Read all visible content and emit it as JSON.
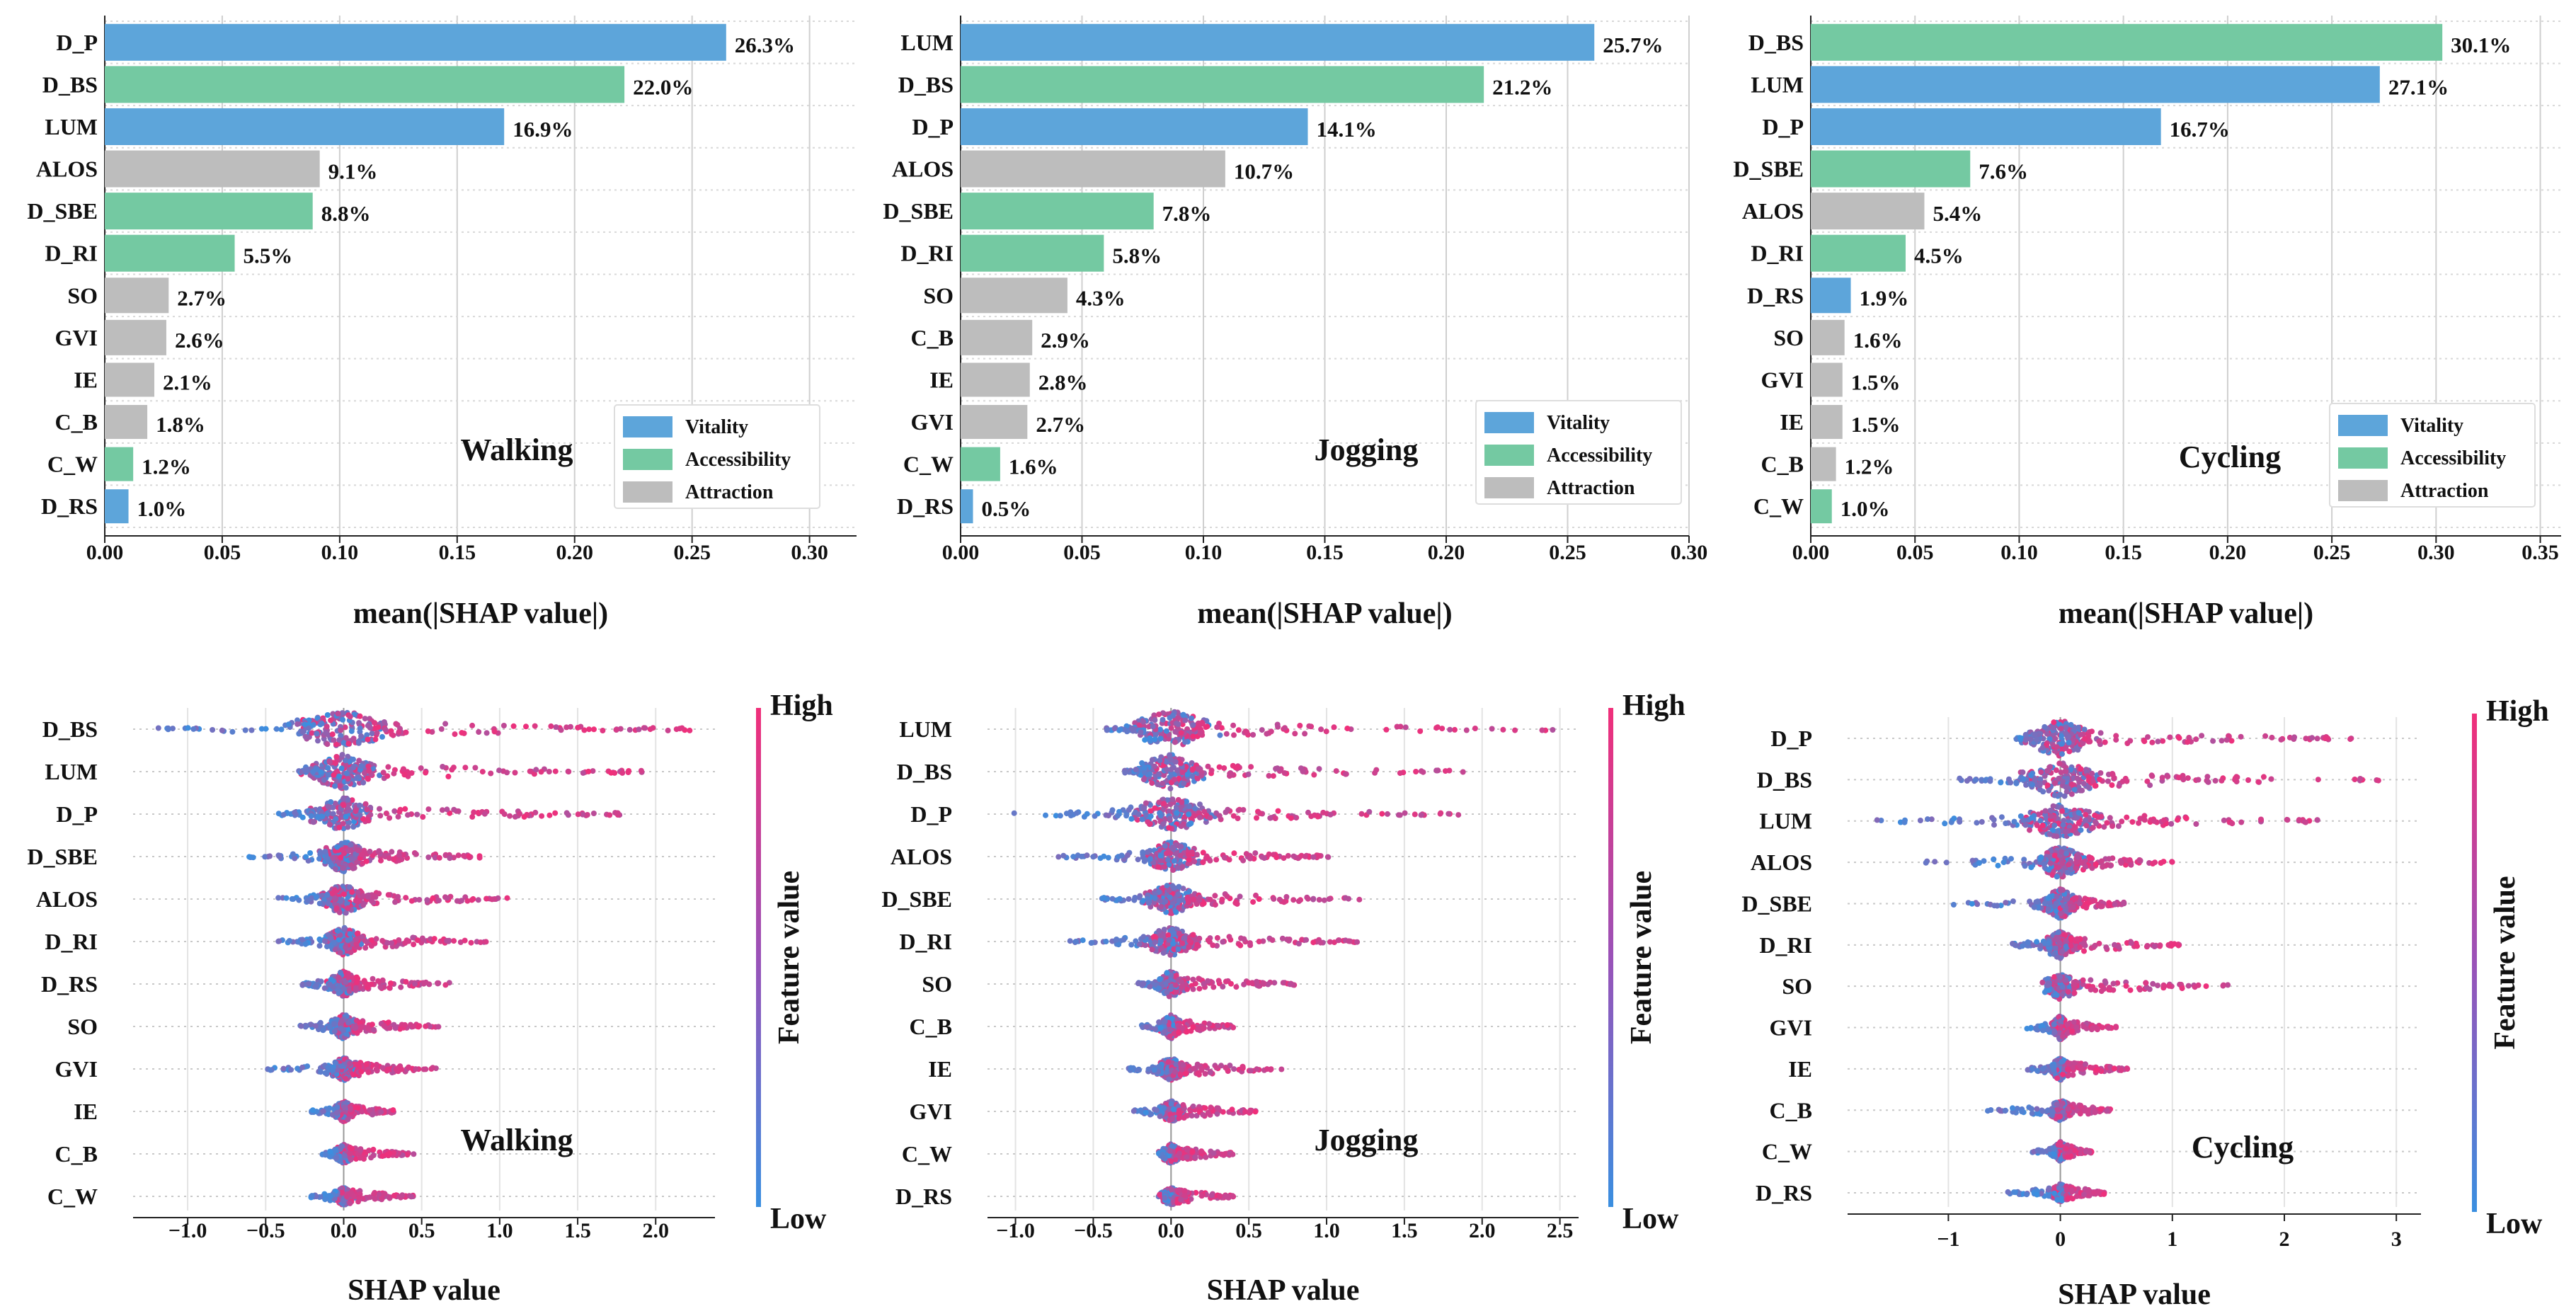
{
  "colors": {
    "Vitality": "#5DA5DA",
    "Accessibility": "#74C9A2",
    "Attraction": "#BDBDBD",
    "high": "#F02F7A",
    "low": "#3A8FE0"
  },
  "chart_data": [
    {
      "type": "bar",
      "id": "bar-walking",
      "title": "Walking",
      "xlabel": "mean(|SHAP value|)",
      "xlim": [
        0,
        0.32
      ],
      "xticks": [
        "0.00",
        "0.05",
        "0.10",
        "0.15",
        "0.20",
        "0.25",
        "0.30"
      ],
      "xtick_values": [
        0,
        0.05,
        0.1,
        0.15,
        0.2,
        0.25,
        0.3
      ],
      "legend": [
        "Vitality",
        "Accessibility",
        "Attraction"
      ],
      "categories": [
        "D_P",
        "D_BS",
        "LUM",
        "ALOS",
        "D_SBE",
        "D_RI",
        "SO",
        "GVI",
        "IE",
        "C_B",
        "C_W",
        "D_RS"
      ],
      "values": [
        0.2645,
        0.2212,
        0.17,
        0.0915,
        0.0885,
        0.0553,
        0.0272,
        0.0262,
        0.0211,
        0.0181,
        0.0121,
        0.0101
      ],
      "labels": [
        "26.3%",
        "22.0%",
        "16.9%",
        "9.1%",
        "8.8%",
        "5.5%",
        "2.7%",
        "2.6%",
        "2.1%",
        "1.8%",
        "1.2%",
        "1.0%"
      ],
      "groups": [
        "Vitality",
        "Accessibility",
        "Vitality",
        "Attraction",
        "Accessibility",
        "Accessibility",
        "Attraction",
        "Attraction",
        "Attraction",
        "Attraction",
        "Accessibility",
        "Vitality"
      ]
    },
    {
      "type": "bar",
      "id": "bar-jogging",
      "title": "Jogging",
      "xlabel": "mean(|SHAP value|)",
      "xlim": [
        0,
        0.3
      ],
      "xticks": [
        "0.00",
        "0.05",
        "0.10",
        "0.15",
        "0.20",
        "0.25",
        "0.30"
      ],
      "xtick_values": [
        0,
        0.05,
        0.1,
        0.15,
        0.2,
        0.25,
        0.3
      ],
      "legend": [
        "Vitality",
        "Accessibility",
        "Attraction"
      ],
      "categories": [
        "LUM",
        "D_BS",
        "D_P",
        "ALOS",
        "D_SBE",
        "D_RI",
        "SO",
        "C_B",
        "IE",
        "GVI",
        "C_W",
        "D_RS"
      ],
      "values": [
        0.261,
        0.2155,
        0.143,
        0.109,
        0.0795,
        0.059,
        0.044,
        0.0295,
        0.0285,
        0.0275,
        0.0163,
        0.0051
      ],
      "labels": [
        "25.7%",
        "21.2%",
        "14.1%",
        "10.7%",
        "7.8%",
        "5.8%",
        "4.3%",
        "2.9%",
        "2.8%",
        "2.7%",
        "1.6%",
        "0.5%"
      ],
      "groups": [
        "Vitality",
        "Accessibility",
        "Vitality",
        "Attraction",
        "Accessibility",
        "Accessibility",
        "Attraction",
        "Attraction",
        "Attraction",
        "Attraction",
        "Accessibility",
        "Vitality"
      ]
    },
    {
      "type": "bar",
      "id": "bar-cycling",
      "title": "Cycling",
      "xlabel": "mean(|SHAP value|)",
      "xlim": [
        0,
        0.36
      ],
      "xticks": [
        "0.00",
        "0.05",
        "0.10",
        "0.15",
        "0.20",
        "0.25",
        "0.30",
        "0.35"
      ],
      "xtick_values": [
        0,
        0.05,
        0.1,
        0.15,
        0.2,
        0.25,
        0.3,
        0.35
      ],
      "legend": [
        "Vitality",
        "Accessibility",
        "Attraction"
      ],
      "categories": [
        "D_BS",
        "LUM",
        "D_P",
        "D_SBE",
        "ALOS",
        "D_RI",
        "D_RS",
        "SO",
        "GVI",
        "IE",
        "C_B",
        "C_W"
      ],
      "values": [
        0.303,
        0.273,
        0.168,
        0.0765,
        0.0545,
        0.0455,
        0.0192,
        0.0162,
        0.0152,
        0.0152,
        0.0121,
        0.0101
      ],
      "labels": [
        "30.1%",
        "27.1%",
        "16.7%",
        "7.6%",
        "5.4%",
        "4.5%",
        "1.9%",
        "1.6%",
        "1.5%",
        "1.5%",
        "1.2%",
        "1.0%"
      ],
      "groups": [
        "Accessibility",
        "Vitality",
        "Vitality",
        "Accessibility",
        "Attraction",
        "Accessibility",
        "Vitality",
        "Attraction",
        "Attraction",
        "Attraction",
        "Attraction",
        "Accessibility"
      ]
    },
    {
      "type": "scatter",
      "id": "bee-walking",
      "title": "Walking",
      "xlabel": "SHAP value",
      "xlim": [
        -1.35,
        2.38
      ],
      "xticks": [
        "−1.0",
        "−0.5",
        "0.0",
        "0.5",
        "1.0",
        "1.5",
        "2.0"
      ],
      "xtick_values": [
        -1,
        -0.5,
        0,
        0.5,
        1,
        1.5,
        2
      ],
      "colorbar": {
        "high": "High",
        "low": "Low",
        "label": "Feature value"
      },
      "features": [
        "D_BS",
        "LUM",
        "D_P",
        "D_SBE",
        "ALOS",
        "D_RI",
        "D_RS",
        "SO",
        "GVI",
        "IE",
        "C_B",
        "C_W"
      ],
      "ranges": [
        [
          -1.25,
          2.28
        ],
        [
          -0.3,
          1.92
        ],
        [
          -0.45,
          1.82
        ],
        [
          -0.62,
          0.88
        ],
        [
          -0.43,
          1.07
        ],
        [
          -0.43,
          0.92
        ],
        [
          -0.3,
          0.68
        ],
        [
          -0.32,
          0.62
        ],
        [
          -0.5,
          0.6
        ],
        [
          -0.22,
          0.32
        ],
        [
          -0.14,
          0.45
        ],
        [
          -0.22,
          0.45
        ]
      ]
    },
    {
      "type": "scatter",
      "id": "bee-jogging",
      "title": "Jogging",
      "xlabel": "SHAP value",
      "xlim": [
        -1.18,
        2.62
      ],
      "xticks": [
        "−1.0",
        "−0.5",
        "0.0",
        "0.5",
        "1.0",
        "1.5",
        "2.0",
        "2.5"
      ],
      "xtick_values": [
        -1,
        -0.5,
        0,
        0.5,
        1,
        1.5,
        2,
        2.5
      ],
      "colorbar": {
        "high": "High",
        "low": "Low",
        "label": "Feature value"
      },
      "features": [
        "LUM",
        "D_BS",
        "D_P",
        "ALOS",
        "D_SBE",
        "D_RI",
        "SO",
        "C_B",
        "IE",
        "GVI",
        "C_W",
        "D_RS"
      ],
      "ranges": [
        [
          -0.42,
          2.5
        ],
        [
          -0.3,
          1.95
        ],
        [
          -1.02,
          1.88
        ],
        [
          -0.75,
          1.05
        ],
        [
          -0.48,
          1.22
        ],
        [
          -0.7,
          1.2
        ],
        [
          -0.22,
          0.8
        ],
        [
          -0.2,
          0.4
        ],
        [
          -0.28,
          0.72
        ],
        [
          -0.25,
          0.55
        ],
        [
          -0.08,
          0.4
        ],
        [
          -0.03,
          0.4
        ]
      ]
    },
    {
      "type": "scatter",
      "id": "bee-cycling",
      "title": "Cycling",
      "xlabel": "SHAP value",
      "xlim": [
        -1.9,
        3.22
      ],
      "xticks": [
        "−1",
        "0",
        "1",
        "2",
        "3"
      ],
      "xtick_values": [
        -1,
        0,
        1,
        2,
        3
      ],
      "colorbar": {
        "high": "High",
        "low": "Low",
        "label": "Feature value"
      },
      "features": [
        "D_P",
        "D_BS",
        "LUM",
        "ALOS",
        "D_SBE",
        "D_RI",
        "SO",
        "GVI",
        "IE",
        "C_B",
        "C_W",
        "D_RS"
      ],
      "ranges": [
        [
          -0.4,
          2.6
        ],
        [
          -0.95,
          2.98
        ],
        [
          -1.7,
          2.3
        ],
        [
          -1.32,
          1.0
        ],
        [
          -0.98,
          0.58
        ],
        [
          -0.5,
          1.08
        ],
        [
          -0.12,
          1.52
        ],
        [
          -0.3,
          0.5
        ],
        [
          -0.32,
          0.6
        ],
        [
          -0.65,
          0.45
        ],
        [
          -0.25,
          0.28
        ],
        [
          -0.48,
          0.42
        ]
      ]
    }
  ]
}
